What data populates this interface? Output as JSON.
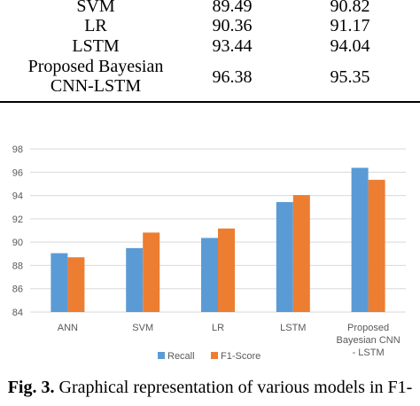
{
  "table": {
    "rows": [
      {
        "model": "SVM",
        "v1": "89.49",
        "v2": "90.82"
      },
      {
        "model": "LR",
        "v1": "90.36",
        "v2": "91.17"
      },
      {
        "model": "LSTM",
        "v1": "93.44",
        "v2": "94.04"
      },
      {
        "model_line1": "Proposed Bayesian",
        "model_line2": "CNN-LSTM",
        "v1": "96.38",
        "v2": "95.35"
      }
    ]
  },
  "chart_data": {
    "type": "bar",
    "categories": [
      "ANN",
      "SVM",
      "LR",
      "LSTM",
      "Proposed Bayesian CNN - LSTM"
    ],
    "category_lines": [
      [
        "ANN"
      ],
      [
        "SVM"
      ],
      [
        "LR"
      ],
      [
        "LSTM"
      ],
      [
        "Proposed",
        "Bayesian CNN",
        "- LSTM"
      ]
    ],
    "series": [
      {
        "name": "Recall",
        "values": [
          89.05,
          89.49,
          90.36,
          93.44,
          96.38
        ],
        "color": "#5B9BD5"
      },
      {
        "name": "F1-Score",
        "values": [
          88.7,
          90.82,
          91.17,
          94.04,
          95.35
        ],
        "color": "#ED7D31"
      }
    ],
    "ylim": [
      84,
      98
    ],
    "yticks": [
      84,
      86,
      88,
      90,
      92,
      94,
      96,
      98
    ],
    "grid": true,
    "legend_position": "bottom"
  },
  "caption": {
    "label": "Fig. 3.",
    "text": " Graphical representation of various models in F1-"
  }
}
